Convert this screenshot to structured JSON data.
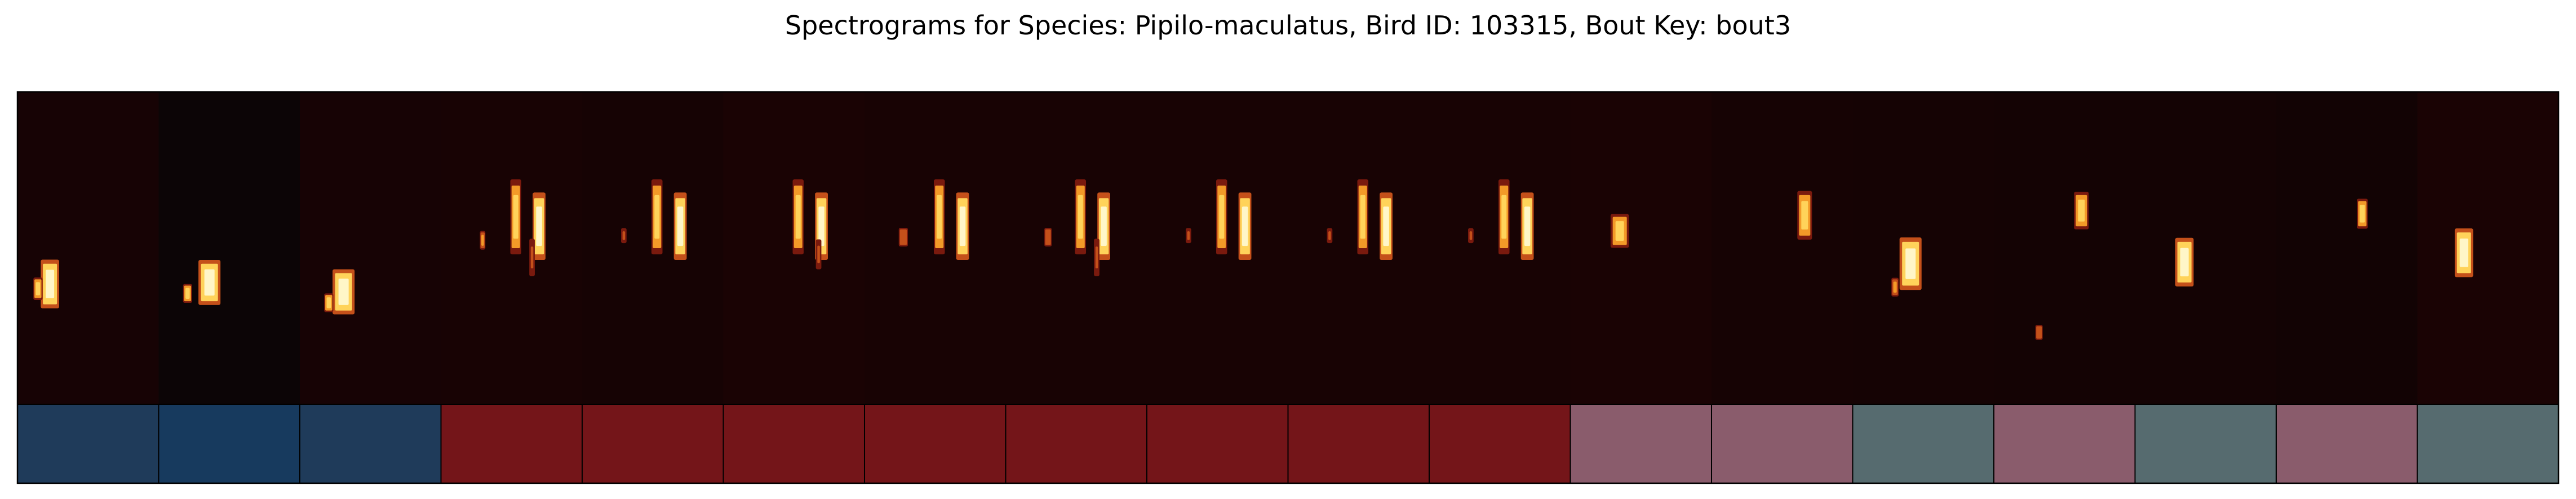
{
  "chart_data": {
    "type": "heatmap",
    "title": "Spectrograms for Species: Pipilo-maculatus, Bird ID: 103315, Bout Key: bout3",
    "colormap": "afmhot",
    "segments": [
      {
        "label_color": "#1f3b5a",
        "bg": "#170305",
        "notes": [
          [
            0.18,
            0.55,
            0.1,
            0.13,
            1.0
          ],
          [
            0.12,
            0.6,
            0.05,
            0.06,
            0.8
          ]
        ]
      },
      {
        "label_color": "#173a5e",
        "bg": "#0c0506",
        "notes": [
          [
            0.3,
            0.55,
            0.12,
            0.12,
            1.0
          ],
          [
            0.18,
            0.62,
            0.05,
            0.05,
            0.8
          ]
        ]
      },
      {
        "label_color": "#1f3b5a",
        "bg": "#170305",
        "notes": [
          [
            0.25,
            0.58,
            0.12,
            0.12,
            1.0
          ],
          [
            0.18,
            0.65,
            0.05,
            0.05,
            0.8
          ]
        ]
      },
      {
        "label_color": "#741519",
        "bg": "#180304",
        "notes": [
          [
            0.5,
            0.3,
            0.06,
            0.2,
            0.9
          ],
          [
            0.66,
            0.34,
            0.07,
            0.18,
            1.0
          ],
          [
            0.28,
            0.45,
            0.03,
            0.05,
            0.7
          ],
          [
            0.63,
            0.48,
            0.03,
            0.1,
            0.5
          ]
        ]
      },
      {
        "label_color": "#741519",
        "bg": "#160304",
        "notes": [
          [
            0.5,
            0.3,
            0.06,
            0.2,
            0.9
          ],
          [
            0.66,
            0.34,
            0.07,
            0.18,
            1.0
          ],
          [
            0.28,
            0.44,
            0.03,
            0.04,
            0.5
          ]
        ]
      },
      {
        "label_color": "#741519",
        "bg": "#1a0304",
        "notes": [
          [
            0.5,
            0.3,
            0.06,
            0.2,
            0.9
          ],
          [
            0.66,
            0.34,
            0.07,
            0.18,
            1.0
          ],
          [
            0.66,
            0.48,
            0.03,
            0.08,
            0.5
          ]
        ]
      },
      {
        "label_color": "#741519",
        "bg": "#180304",
        "notes": [
          [
            0.5,
            0.3,
            0.06,
            0.2,
            0.9
          ],
          [
            0.66,
            0.34,
            0.07,
            0.18,
            1.0
          ],
          [
            0.25,
            0.44,
            0.05,
            0.05,
            0.6
          ]
        ]
      },
      {
        "label_color": "#741519",
        "bg": "#180304",
        "notes": [
          [
            0.5,
            0.3,
            0.06,
            0.2,
            0.9
          ],
          [
            0.66,
            0.34,
            0.07,
            0.18,
            1.0
          ],
          [
            0.28,
            0.44,
            0.04,
            0.05,
            0.6
          ],
          [
            0.63,
            0.48,
            0.03,
            0.1,
            0.5
          ]
        ]
      },
      {
        "label_color": "#741519",
        "bg": "#180304",
        "notes": [
          [
            0.5,
            0.3,
            0.06,
            0.2,
            0.9
          ],
          [
            0.66,
            0.34,
            0.07,
            0.18,
            1.0
          ],
          [
            0.28,
            0.44,
            0.03,
            0.04,
            0.5
          ]
        ]
      },
      {
        "label_color": "#741519",
        "bg": "#180304",
        "notes": [
          [
            0.5,
            0.3,
            0.06,
            0.2,
            0.9
          ],
          [
            0.66,
            0.34,
            0.07,
            0.18,
            1.0
          ],
          [
            0.28,
            0.44,
            0.03,
            0.04,
            0.5
          ]
        ]
      },
      {
        "label_color": "#741519",
        "bg": "#180304",
        "notes": [
          [
            0.5,
            0.3,
            0.06,
            0.2,
            0.9
          ],
          [
            0.66,
            0.34,
            0.07,
            0.18,
            1.0
          ],
          [
            0.28,
            0.44,
            0.03,
            0.04,
            0.5
          ]
        ]
      },
      {
        "label_color": "#8a5c6c",
        "bg": "#1a0304",
        "notes": [
          [
            0.3,
            0.4,
            0.1,
            0.09,
            0.9
          ]
        ]
      },
      {
        "label_color": "#8a5c6c",
        "bg": "#160304",
        "notes": [
          [
            0.62,
            0.33,
            0.08,
            0.13,
            0.9
          ]
        ]
      },
      {
        "label_color": "#566b6f",
        "bg": "#150304",
        "notes": [
          [
            0.35,
            0.48,
            0.12,
            0.14,
            1.0
          ],
          [
            0.28,
            0.6,
            0.04,
            0.05,
            0.7
          ]
        ]
      },
      {
        "label_color": "#8a5c6c",
        "bg": "#140304",
        "notes": [
          [
            0.58,
            0.33,
            0.08,
            0.1,
            0.9
          ],
          [
            0.3,
            0.75,
            0.04,
            0.04,
            0.6
          ]
        ]
      },
      {
        "label_color": "#566b6f",
        "bg": "#140304",
        "notes": [
          [
            0.3,
            0.48,
            0.1,
            0.13,
            1.0
          ]
        ]
      },
      {
        "label_color": "#8a5c6c",
        "bg": "#120304",
        "notes": [
          [
            0.58,
            0.35,
            0.06,
            0.08,
            0.9
          ]
        ]
      },
      {
        "label_color": "#566b6f",
        "bg": "#1a0304",
        "notes": [
          [
            0.28,
            0.45,
            0.1,
            0.13,
            1.0
          ]
        ]
      }
    ]
  }
}
